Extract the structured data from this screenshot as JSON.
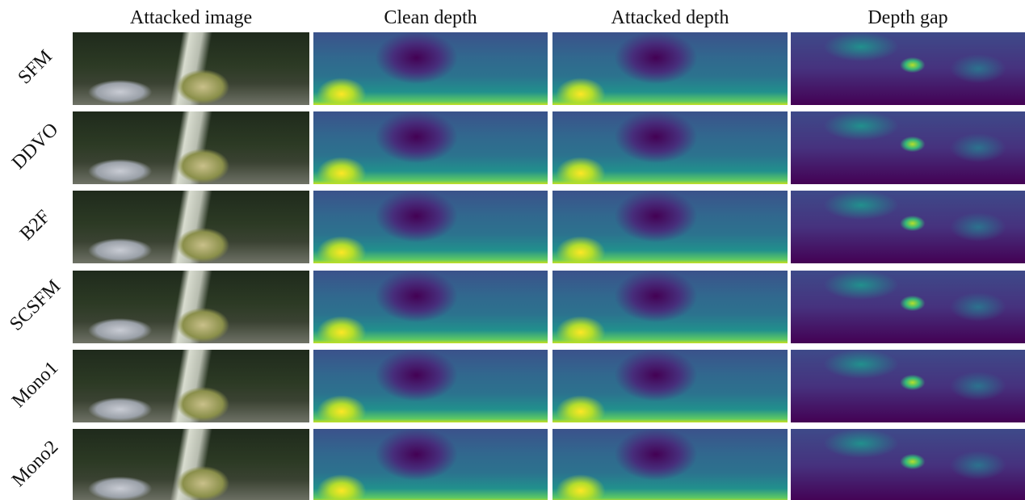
{
  "header": {
    "columns": [
      "Attacked image",
      "Clean depth",
      "Attacked depth",
      "Depth gap"
    ]
  },
  "rows": [
    {
      "label": "SFM"
    },
    {
      "label": "DDVO"
    },
    {
      "label": "B2F"
    },
    {
      "label": "SCSFM"
    },
    {
      "label": "Mono1"
    },
    {
      "label": "Mono2"
    }
  ]
}
